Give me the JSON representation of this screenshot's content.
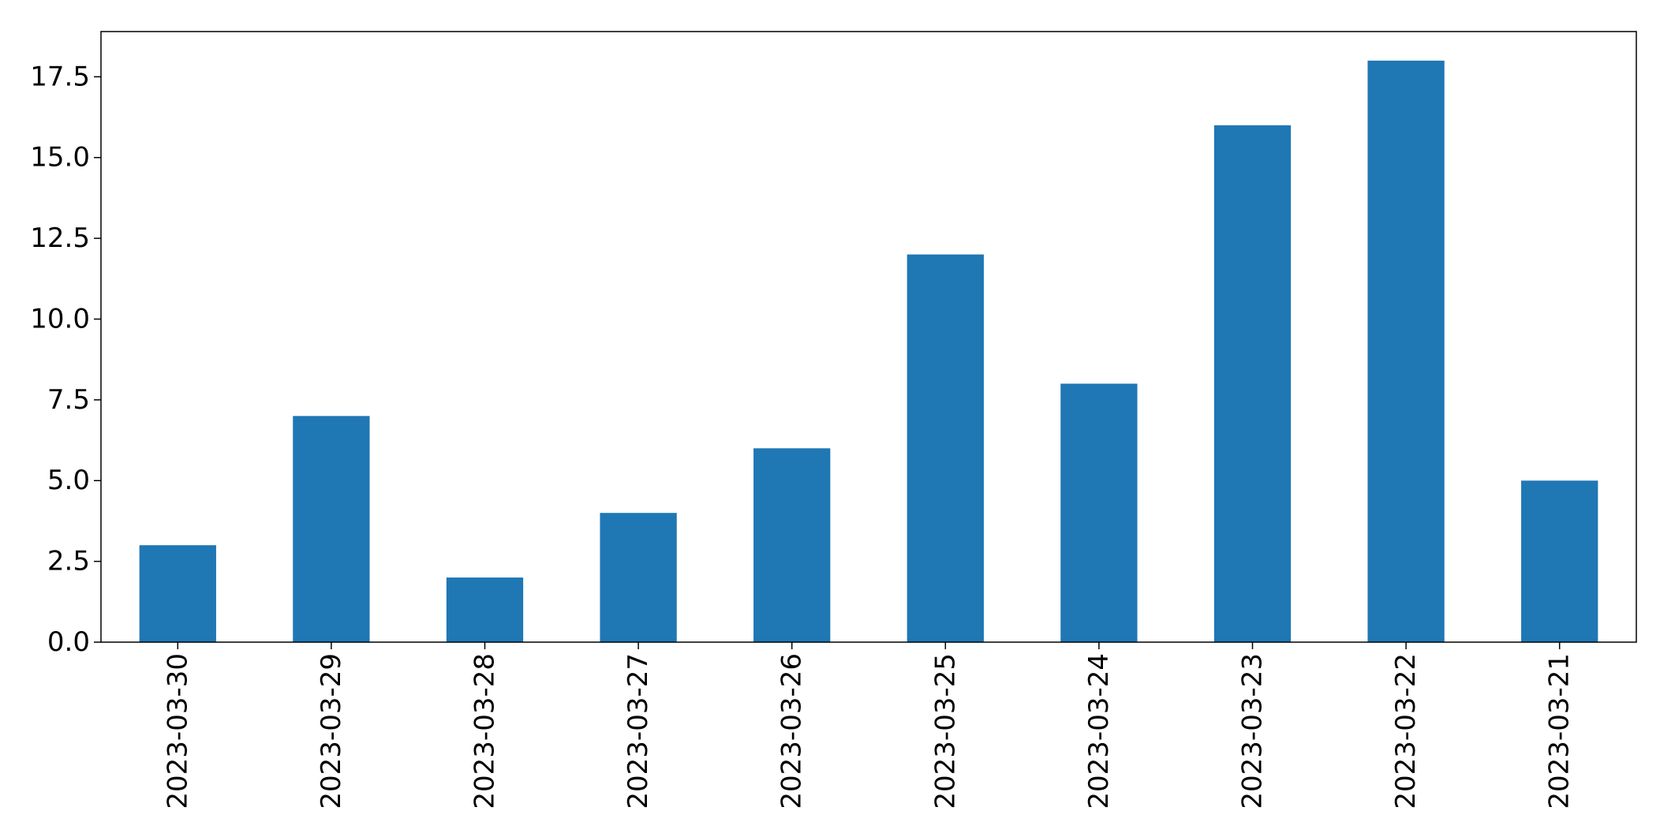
{
  "chart_data": {
    "type": "bar",
    "title": "",
    "xlabel": "",
    "ylabel": "",
    "categories": [
      "2023-03-30",
      "2023-03-29",
      "2023-03-28",
      "2023-03-27",
      "2023-03-26",
      "2023-03-25",
      "2023-03-24",
      "2023-03-23",
      "2023-03-22",
      "2023-03-21"
    ],
    "values": [
      3,
      7,
      2,
      4,
      6,
      12,
      8,
      16,
      18,
      5
    ],
    "ylim": [
      0,
      18.9
    ],
    "yticks": [
      "0.0",
      "2.5",
      "5.0",
      "7.5",
      "10.0",
      "12.5",
      "15.0",
      "17.5"
    ],
    "bar_color": "#1f77b4",
    "grid": false,
    "legend": "none"
  }
}
